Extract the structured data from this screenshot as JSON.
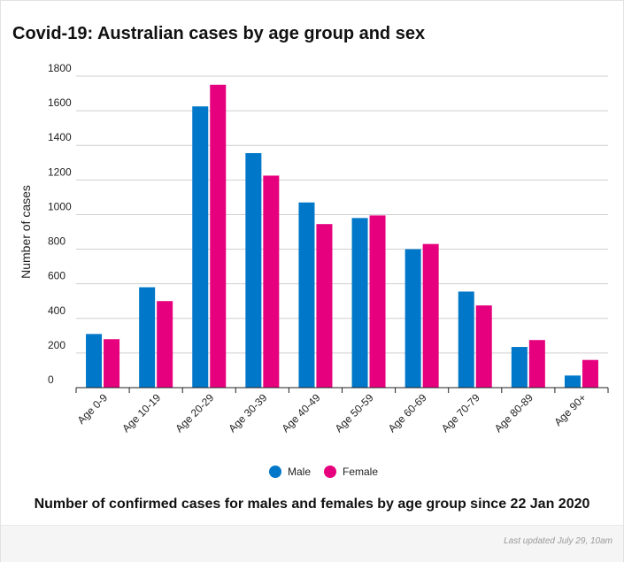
{
  "header": {
    "title": "Covid-19: Australian cases by age group and sex"
  },
  "caption": "Number of confirmed cases for males and females by age group since 22 Jan 2020",
  "footer": {
    "updated": "Last updated July 29, 10am"
  },
  "colors": {
    "male": "#0077c8",
    "female": "#e6007e"
  },
  "chart_data": {
    "type": "bar",
    "title": "Covid-19: Australian cases by age group and sex",
    "xlabel": "",
    "ylabel": "Number of cases",
    "ylim": [
      0,
      1800
    ],
    "yticks": [
      0,
      200,
      400,
      600,
      800,
      1000,
      1200,
      1400,
      1600,
      1800
    ],
    "grid": true,
    "legend": "bottom-center",
    "categories": [
      "Age 0-9",
      "Age 10-19",
      "Age 20-29",
      "Age 30-39",
      "Age 40-49",
      "Age 50-59",
      "Age 60-69",
      "Age 70-79",
      "Age 80-89",
      "Age 90+"
    ],
    "series": [
      {
        "name": "Male",
        "color": "#0077c8",
        "values": [
          310,
          580,
          1625,
          1355,
          1070,
          980,
          800,
          555,
          235,
          70
        ]
      },
      {
        "name": "Female",
        "color": "#e6007e",
        "values": [
          280,
          500,
          1750,
          1225,
          945,
          995,
          830,
          475,
          275,
          160
        ]
      }
    ]
  }
}
